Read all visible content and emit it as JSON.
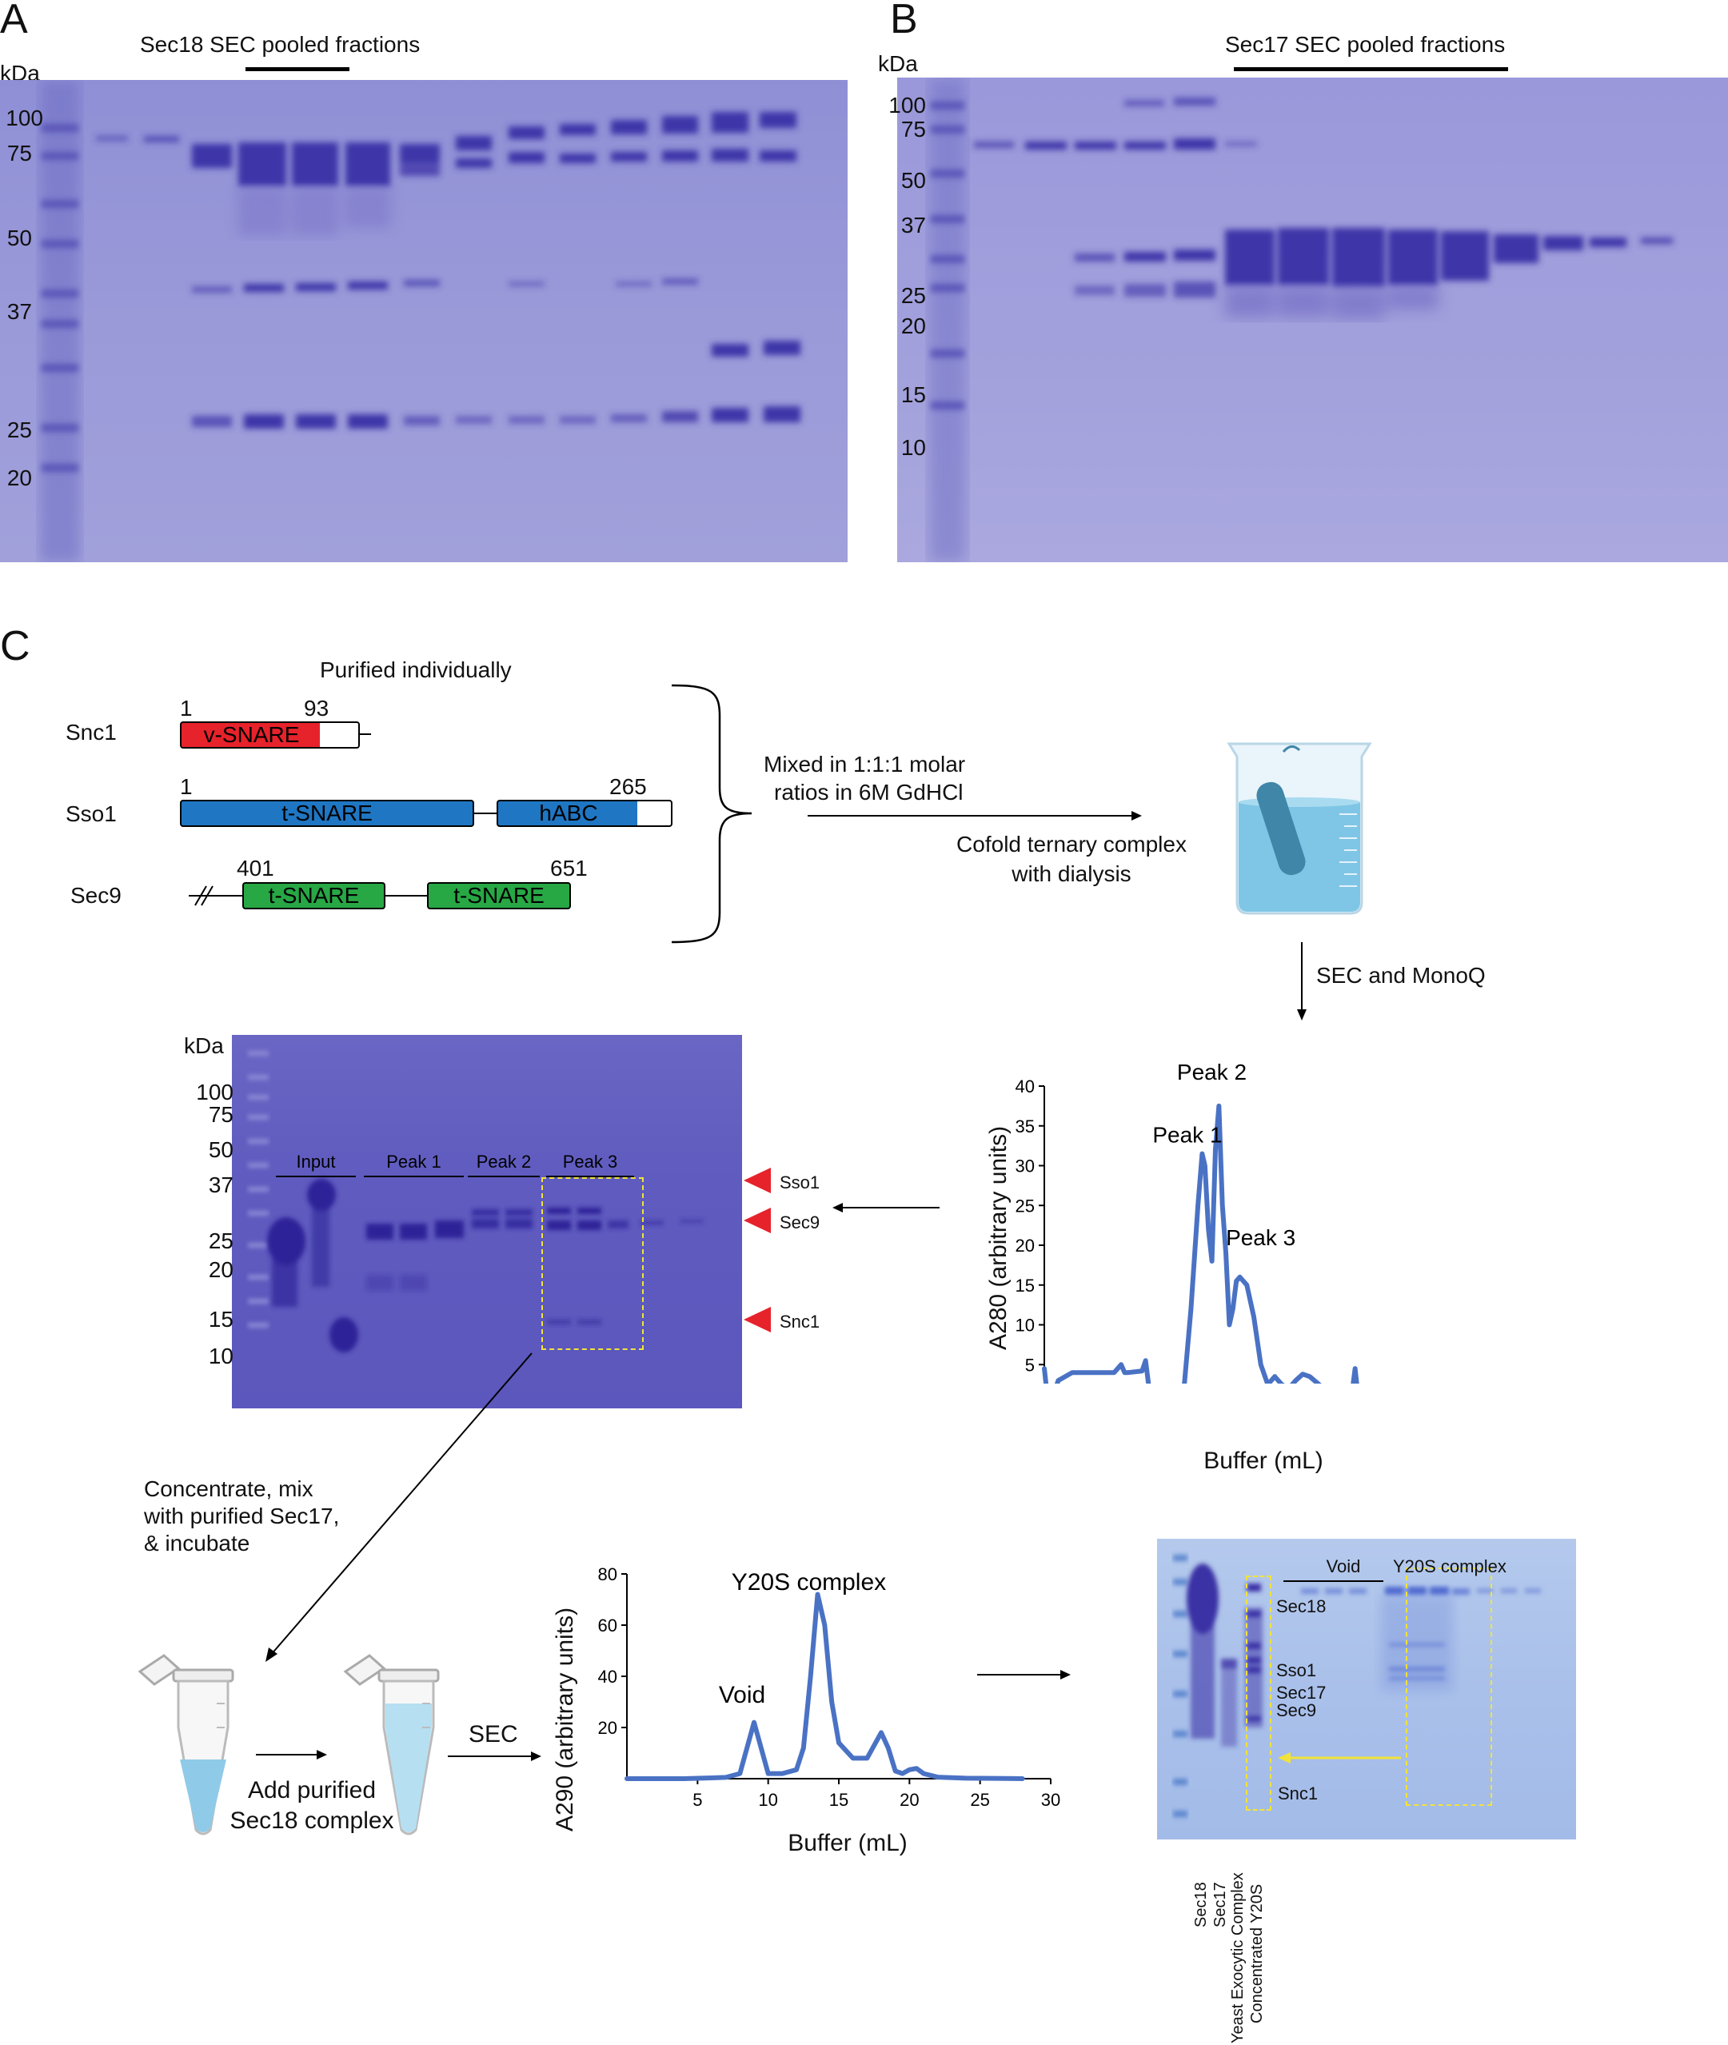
{
  "panel_a": {
    "letter": "A",
    "unit": "kDa",
    "title": "Sec18 SEC pooled fractions",
    "markers": [
      "100",
      "75",
      "50",
      "37",
      "25",
      "20"
    ]
  },
  "panel_b": {
    "letter": "B",
    "unit": "kDa",
    "title": "Sec17 SEC pooled fractions",
    "markers": [
      "100",
      "75",
      "50",
      "37",
      "25",
      "20",
      "15",
      "10"
    ]
  },
  "panel_c": {
    "letter": "C",
    "purified_label": "Purified individually",
    "constructs": {
      "snc1": {
        "name": "Snc1",
        "start": "1",
        "end": "93",
        "domain": "v-SNARE"
      },
      "sso1": {
        "name": "Sso1",
        "start": "1",
        "end": "265",
        "domain1": "t-SNARE",
        "domain2": "hABC"
      },
      "sec9": {
        "name": "Sec9",
        "start": "401",
        "end": "651",
        "domain1": "t-SNARE",
        "domain2": "t-SNARE"
      }
    },
    "mix_text_1": "Mixed in 1:1:1 molar",
    "mix_text_2": "ratios in 6M GdHCl",
    "cofold_text_1": "Cofold ternary complex",
    "cofold_text_2": "with dialysis",
    "sec_monoq": "SEC and MonoQ",
    "gel2": {
      "unit": "kDa",
      "markers": [
        "100",
        "75",
        "50",
        "37",
        "25",
        "20",
        "15",
        "10"
      ],
      "lane_groups": [
        "Input",
        "Peak 1",
        "Peak 2",
        "Peak 3"
      ],
      "arrow_labels": [
        "Sso1",
        "Sec9",
        "Snc1"
      ]
    },
    "concentrate_1": "Concentrate, mix",
    "concentrate_2": "with purified Sec17,",
    "concentrate_3": "& incubate",
    "add_sec18_1": "Add purified",
    "add_sec18_2": "Sec18 complex",
    "sec_label": "SEC",
    "gel3": {
      "group_labels": [
        "Void",
        "Y20S complex"
      ],
      "band_labels": [
        "Sec18",
        "Sso1",
        "Sec17",
        "Sec9",
        "Snc1"
      ],
      "lane_labels": [
        "Sec18",
        "Sec17",
        "Yeast Exocytic Complex",
        "Concentrated Y20S"
      ]
    }
  },
  "chart_data": [
    {
      "type": "line",
      "xlabel": "Buffer (mL)",
      "ylabel": "A280 (arbitrary units)",
      "xlim": [
        0,
        60
      ],
      "ylim": [
        0,
        40
      ],
      "xticks": [
        "0",
        "10",
        "20",
        "30",
        "40",
        "50",
        "60"
      ],
      "yticks": [
        "5",
        "10",
        "15",
        "20",
        "25",
        "30",
        "35",
        "40"
      ],
      "annotations": [
        "Peak 1",
        "Peak 2",
        "Peak 3"
      ],
      "x": [
        0,
        0.5,
        1,
        2,
        4,
        10,
        11,
        11.5,
        12,
        14,
        14.5,
        15,
        16,
        18,
        19,
        20,
        21,
        22,
        22.6,
        23,
        23.5,
        24,
        24.5,
        25,
        25.5,
        26,
        26.5,
        27,
        27.5,
        28,
        29,
        30,
        31,
        32,
        33,
        34,
        35,
        36,
        37,
        38,
        40,
        42,
        44,
        44.5,
        45,
        46,
        48,
        50
      ],
      "y": [
        4.5,
        0.5,
        0.5,
        3,
        4,
        4,
        5,
        4,
        4,
        4.2,
        5.5,
        2,
        0.5,
        0.3,
        0.5,
        2,
        12,
        25,
        31.5,
        30,
        22,
        18,
        32,
        37.5,
        25,
        19,
        10,
        12,
        15.5,
        16,
        15,
        11,
        5,
        2.5,
        3.5,
        2.5,
        2,
        3,
        3.8,
        3.5,
        2,
        1.3,
        1,
        4.5,
        0.5,
        0.2,
        0.1,
        0
      ],
      "color": "#4a72c4"
    },
    {
      "type": "line",
      "title": "Y20S complex",
      "xlabel": "Buffer (mL)",
      "ylabel": "A290 (arbitrary units)",
      "xlim": [
        0,
        30
      ],
      "ylim": [
        0,
        80
      ],
      "xticks": [
        "5",
        "10",
        "15",
        "20",
        "25",
        "30"
      ],
      "yticks": [
        "20",
        "40",
        "60",
        "80"
      ],
      "annotations": [
        "Void"
      ],
      "x": [
        0,
        2,
        4,
        6,
        7,
        8,
        8.5,
        9,
        9.5,
        10,
        11,
        12,
        12.5,
        13,
        13.5,
        14,
        14.5,
        15,
        16,
        17,
        17.5,
        18,
        18.5,
        19,
        19.5,
        20,
        20.5,
        21,
        22,
        24,
        26,
        28
      ],
      "y": [
        0,
        0,
        0,
        0.3,
        0.5,
        2,
        12,
        22,
        12,
        2,
        2,
        3.5,
        12,
        40,
        72,
        60,
        30,
        14,
        8,
        8,
        13,
        18,
        12,
        3,
        2,
        3.5,
        4,
        2,
        0.6,
        0.2,
        0.1,
        0
      ],
      "color": "#4a72c4"
    }
  ]
}
